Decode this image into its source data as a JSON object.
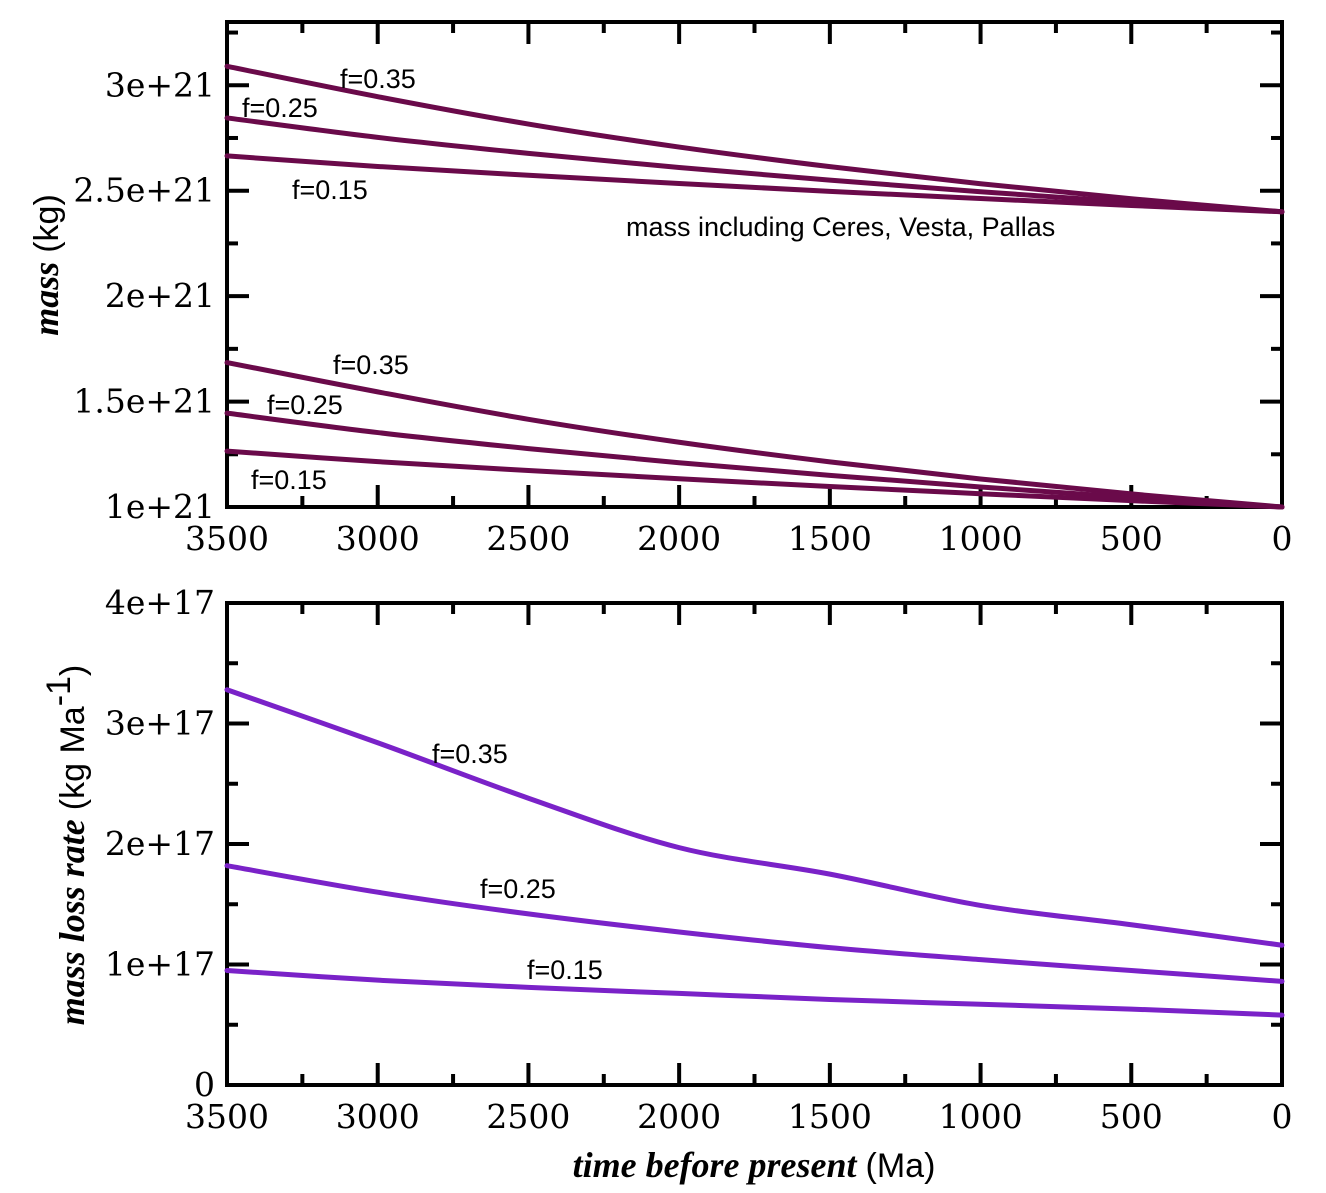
{
  "chart_data": [
    {
      "type": "line",
      "panel": "top",
      "title": "",
      "xlabel_italic": "time before present",
      "xlabel_unit": "(Ma)",
      "ylabel_italic": "mass",
      "ylabel_unit": "(kg)",
      "xlim": [
        3500,
        0
      ],
      "ylim": [
        1e+21,
        3.3e+21
      ],
      "x": [
        0,
        500,
        1000,
        1500,
        2000,
        2500,
        3000,
        3500
      ],
      "y_scale": 1e+21,
      "series_color": "#6a0a4a",
      "series": [
        {
          "name": "f=0.35 (incl. Ceres, Vesta, Pallas)",
          "values": [
            2.4,
            2.462,
            2.533,
            2.614,
            2.707,
            2.816,
            2.946,
            3.09
          ]
        },
        {
          "name": "f=0.25 (incl. Ceres, Vesta, Pallas)",
          "values": [
            2.4,
            2.445,
            2.495,
            2.55,
            2.61,
            2.677,
            2.753,
            2.845
          ]
        },
        {
          "name": "f=0.15 (incl. Ceres, Vesta, Pallas)",
          "values": [
            2.4,
            2.43,
            2.463,
            2.497,
            2.534,
            2.573,
            2.615,
            2.665
          ]
        },
        {
          "name": "f=0.35",
          "values": [
            1.0,
            1.062,
            1.133,
            1.214,
            1.307,
            1.416,
            1.546,
            1.685
          ]
        },
        {
          "name": "f=0.25",
          "values": [
            1.0,
            1.045,
            1.095,
            1.15,
            1.21,
            1.277,
            1.353,
            1.445
          ]
        },
        {
          "name": "f=0.15",
          "values": [
            1.0,
            1.03,
            1.063,
            1.097,
            1.134,
            1.173,
            1.215,
            1.265
          ]
        }
      ],
      "x_ticks": [
        "3500",
        "3000",
        "2500",
        "2000",
        "1500",
        "1000",
        "500",
        "0"
      ],
      "x_tick_values": [
        3500,
        3000,
        2500,
        2000,
        1500,
        1000,
        500,
        0
      ],
      "y_ticks": [
        "1e+21",
        "1.5e+21",
        "2e+21",
        "2.5e+21",
        "3e+21"
      ],
      "y_tick_values": [
        1e+21,
        1.5e+21,
        2e+21,
        2.5e+21,
        3e+21
      ],
      "annotations": [
        "f=0.35",
        "f=0.25",
        "f=0.15",
        "mass including Ceres, Vesta, Pallas",
        "f=0.35",
        "f=0.25",
        "f=0.15"
      ],
      "grid": false
    },
    {
      "type": "line",
      "panel": "bottom",
      "xlabel_italic": "time before present",
      "xlabel_unit": "(Ma)",
      "ylabel_italic": "mass loss rate",
      "ylabel_unit": "(kg Ma",
      "ylabel_sup": "-1",
      "ylabel_close": ")",
      "xlim": [
        3500,
        0
      ],
      "ylim": [
        0,
        4e+17
      ],
      "x": [
        0,
        500,
        1000,
        1500,
        2000,
        2500,
        3000,
        3500
      ],
      "y_scale": 1e+17,
      "series_color": "#7a22c8",
      "series": [
        {
          "name": "f=0.35",
          "values": [
            1.16,
            1.33,
            1.49,
            1.75,
            1.97,
            2.38,
            2.84,
            3.28
          ]
        },
        {
          "name": "f=0.25",
          "values": [
            0.86,
            0.95,
            1.04,
            1.14,
            1.27,
            1.42,
            1.6,
            1.82
          ]
        },
        {
          "name": "f=0.15",
          "values": [
            0.58,
            0.63,
            0.67,
            0.71,
            0.76,
            0.81,
            0.87,
            0.95
          ]
        }
      ],
      "x_ticks": [
        "3500",
        "3000",
        "2500",
        "2000",
        "1500",
        "1000",
        "500",
        "0"
      ],
      "x_tick_values": [
        3500,
        3000,
        2500,
        2000,
        1500,
        1000,
        500,
        0
      ],
      "y_ticks": [
        "0",
        "1e+17",
        "2e+17",
        "3e+17",
        "4e+17"
      ],
      "y_tick_values": [
        0,
        1e+17,
        2e+17,
        3e+17,
        4e+17
      ],
      "annotations": [
        "f=0.35",
        "f=0.25",
        "f=0.15"
      ],
      "grid": false
    }
  ]
}
